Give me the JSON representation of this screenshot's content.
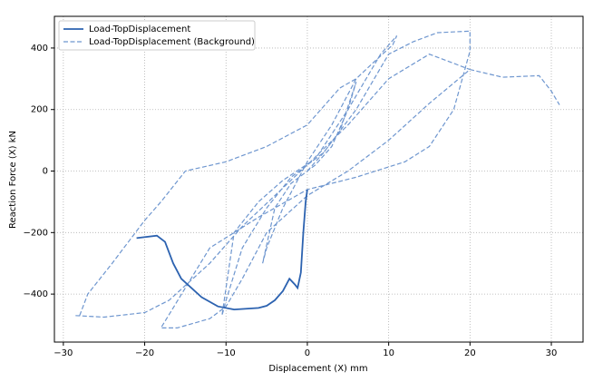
{
  "chart_data": {
    "type": "line",
    "xlabel": "Displacement (X) mm",
    "ylabel": "Reaction Force (X) kN",
    "xlim": [
      -31.1,
      33.9
    ],
    "ylim": [
      -556,
      503
    ],
    "xticks": [
      {
        "value": -30,
        "label": "−30"
      },
      {
        "value": -20,
        "label": "−20"
      },
      {
        "value": -10,
        "label": "−10"
      },
      0,
      10,
      20,
      30
    ],
    "yticks": [
      {
        "value": -400,
        "label": "−400"
      },
      {
        "value": -200,
        "label": "−200"
      },
      0,
      200,
      400
    ],
    "grid": true,
    "legend": "upper left",
    "series": [
      {
        "name": "Load-TopDisplacement",
        "color": "#2c62b0",
        "style": "solid",
        "x": [
          -21,
          -18.5,
          -17.5,
          -16.5,
          -15.5,
          -13,
          -11,
          -9,
          -6,
          -5,
          -4,
          -3,
          -2.2,
          -1.5,
          -1.2,
          -0.8,
          -0.5,
          -0.2,
          0
        ],
        "values": [
          -218,
          -210,
          -230,
          -300,
          -350,
          -410,
          -440,
          -450,
          -445,
          -438,
          -420,
          -390,
          -350,
          -370,
          -380,
          -330,
          -200,
          -100,
          -60
        ]
      },
      {
        "name": "Load-TopDisplacement (Background)",
        "color": "#6e96cf",
        "style": "dashed",
        "x": [
          0,
          2,
          4,
          5.5,
          6,
          5,
          3,
          1,
          -2,
          -4,
          -5.5,
          -5,
          -3,
          0,
          3,
          6,
          8,
          10.5,
          11,
          9,
          5,
          1,
          -3,
          -6,
          -9,
          -10.5,
          -10,
          -8,
          -5,
          -2,
          2,
          6,
          10,
          13,
          16,
          20,
          20,
          18,
          15,
          12,
          6,
          0,
          -6,
          -12,
          -15,
          -18,
          -16,
          -12,
          -10,
          -8,
          -5,
          0,
          5,
          10,
          15,
          20,
          24,
          28.5,
          30,
          31,
          null,
          -28.5,
          -25,
          -20,
          -17,
          -12,
          -8,
          -4,
          0,
          5,
          10,
          15,
          20,
          null,
          -28,
          -27,
          -24,
          -20,
          -18,
          -15,
          -10,
          -5,
          0,
          4,
          6
        ],
        "values": [
          0,
          60,
          130,
          250,
          290,
          200,
          80,
          20,
          -40,
          -120,
          -300,
          -250,
          -120,
          30,
          150,
          300,
          350,
          410,
          440,
          380,
          200,
          40,
          -30,
          -100,
          -200,
          -470,
          -420,
          -250,
          -120,
          -20,
          60,
          200,
          380,
          420,
          450,
          455,
          390,
          200,
          80,
          30,
          -20,
          -60,
          -150,
          -250,
          -380,
          -510,
          -510,
          -480,
          -440,
          -350,
          -200,
          -80,
          0,
          100,
          220,
          330,
          305,
          310,
          260,
          215,
          null,
          -470,
          -475,
          -460,
          -420,
          -300,
          -180,
          -80,
          20,
          150,
          300,
          380,
          330,
          null,
          -470,
          -400,
          -300,
          -160,
          -100,
          0,
          30,
          80,
          150,
          270,
          300
        ]
      }
    ]
  }
}
